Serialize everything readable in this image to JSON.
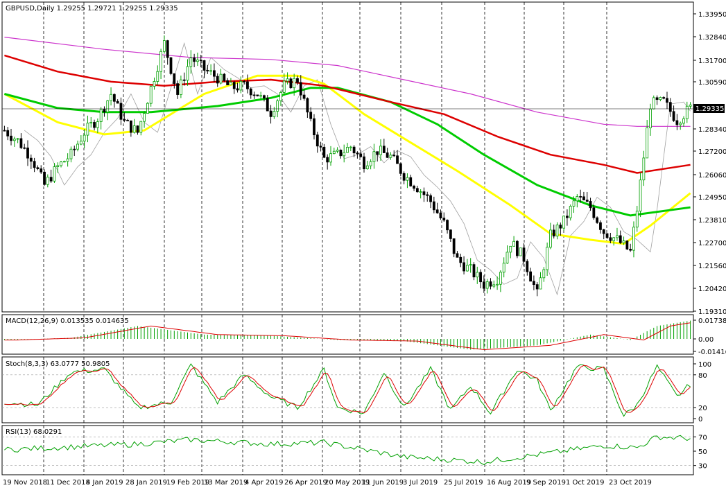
{
  "header": {
    "symbol_line": "GBPUSD,Daily  1.29255 1.29721 1.29255 1.29335",
    "current_price_label": "1.29335"
  },
  "colors": {
    "background": "#ffffff",
    "candle_up": "#00a000",
    "candle_down": "#000000",
    "ma_fast": "#ffff00",
    "ma_mid": "#00cc00",
    "ma_slow": "#dd0000",
    "ma_longest": "#cc33cc",
    "thin_ma": "#a0a0a0",
    "macd_hist": "#00a000",
    "macd_signal": "#dd0000",
    "stoch_main": "#00a000",
    "stoch_signal": "#dd0000",
    "rsi": "#00a000",
    "grid_dash": "#000000"
  },
  "chart_data": [
    {
      "type": "candlestick",
      "title": "GBPUSD,Daily  1.29255 1.29721 1.29255 1.29335",
      "panel": "price",
      "y_ticks": [
        "1.33950",
        "1.32840",
        "1.31700",
        "1.30590",
        "1.29335",
        "1.28340",
        "1.27200",
        "1.26060",
        "1.24950",
        "1.23810",
        "1.22700",
        "1.21560",
        "1.20420",
        "1.19310"
      ],
      "ylim": [
        1.1931,
        1.3395
      ],
      "x_ticks": [
        "19 Nov 2018",
        "11 Dec 2018",
        "4 Jan 2019",
        "28 Jan 2019",
        "19 Feb 2019",
        "13 Mar 2019",
        "4 Apr 2019",
        "26 Apr 2019",
        "20 May 2019",
        "11 Jun 2019",
        "3 Jul 2019",
        "25 Jul 2019",
        "16 Aug 2019",
        "9 Sep 2019",
        "1 Oct 2019",
        "23 Oct 2019"
      ],
      "close_path": [
        [
          0,
          1.282
        ],
        [
          4,
          1.277
        ],
        [
          8,
          1.269
        ],
        [
          12,
          1.255
        ],
        [
          16,
          1.264
        ],
        [
          20,
          1.27
        ],
        [
          24,
          1.281
        ],
        [
          28,
          1.288
        ],
        [
          32,
          1.3
        ],
        [
          36,
          1.286
        ],
        [
          40,
          1.281
        ],
        [
          44,
          1.303
        ],
        [
          48,
          1.325
        ],
        [
          52,
          1.3
        ],
        [
          56,
          1.318
        ],
        [
          60,
          1.312
        ],
        [
          64,
          1.308
        ],
        [
          68,
          1.303
        ],
        [
          72,
          1.304
        ],
        [
          76,
          1.3
        ],
        [
          80,
          1.291
        ],
        [
          84,
          1.304
        ],
        [
          88,
          1.307
        ],
        [
          92,
          1.285
        ],
        [
          96,
          1.268
        ],
        [
          100,
          1.27
        ],
        [
          104,
          1.274
        ],
        [
          108,
          1.266
        ],
        [
          112,
          1.272
        ],
        [
          116,
          1.269
        ],
        [
          120,
          1.26
        ],
        [
          124,
          1.254
        ],
        [
          128,
          1.247
        ],
        [
          132,
          1.236
        ],
        [
          136,
          1.218
        ],
        [
          140,
          1.213
        ],
        [
          144,
          1.206
        ],
        [
          148,
          1.209
        ],
        [
          152,
          1.227
        ],
        [
          156,
          1.219
        ],
        [
          160,
          1.201
        ],
        [
          164,
          1.23
        ],
        [
          168,
          1.237
        ],
        [
          172,
          1.249
        ],
        [
          176,
          1.244
        ],
        [
          180,
          1.232
        ],
        [
          184,
          1.228
        ],
        [
          188,
          1.222
        ],
        [
          190,
          1.243
        ],
        [
          194,
          1.295
        ],
        [
          198,
          1.296
        ],
        [
          202,
          1.287
        ],
        [
          206,
          1.293
        ]
      ],
      "moving_averages": [
        {
          "color": "yellow",
          "points": [
            [
              0,
              1.3
            ],
            [
              16,
              1.286
            ],
            [
              30,
              1.28
            ],
            [
              42,
              1.282
            ],
            [
              60,
              1.3
            ],
            [
              76,
              1.309
            ],
            [
              88,
              1.309
            ],
            [
              96,
              1.305
            ],
            [
              108,
              1.29
            ],
            [
              120,
              1.278
            ],
            [
              136,
              1.262
            ],
            [
              152,
              1.245
            ],
            [
              164,
              1.231
            ],
            [
              176,
              1.228
            ],
            [
              186,
              1.226
            ],
            [
              194,
              1.235
            ],
            [
              206,
              1.251
            ]
          ]
        },
        {
          "color": "green",
          "points": [
            [
              0,
              1.3
            ],
            [
              16,
              1.293
            ],
            [
              30,
              1.291
            ],
            [
              44,
              1.291
            ],
            [
              64,
              1.294
            ],
            [
              80,
              1.298
            ],
            [
              92,
              1.303
            ],
            [
              100,
              1.303
            ],
            [
              116,
              1.296
            ],
            [
              130,
              1.285
            ],
            [
              144,
              1.27
            ],
            [
              160,
              1.255
            ],
            [
              176,
              1.245
            ],
            [
              188,
              1.24
            ],
            [
              206,
              1.244
            ]
          ]
        },
        {
          "color": "red",
          "points": [
            [
              0,
              1.319
            ],
            [
              16,
              1.311
            ],
            [
              32,
              1.306
            ],
            [
              48,
              1.304
            ],
            [
              64,
              1.306
            ],
            [
              80,
              1.307
            ],
            [
              96,
              1.304
            ],
            [
              116,
              1.296
            ],
            [
              132,
              1.29
            ],
            [
              148,
              1.279
            ],
            [
              164,
              1.27
            ],
            [
              180,
              1.265
            ],
            [
              190,
              1.261
            ],
            [
              206,
              1.265
            ]
          ]
        },
        {
          "color": "magenta",
          "points": [
            [
              0,
              1.328
            ],
            [
              30,
              1.322
            ],
            [
              56,
              1.318
            ],
            [
              80,
              1.317
            ],
            [
              100,
              1.314
            ],
            [
              120,
              1.307
            ],
            [
              140,
              1.3
            ],
            [
              160,
              1.291
            ],
            [
              180,
              1.285
            ],
            [
              190,
              1.284
            ],
            [
              206,
              1.284
            ]
          ]
        }
      ]
    },
    {
      "type": "histogram",
      "panel": "macd",
      "title": "MACD(12,26,9) 0.013535 0.014635",
      "y_ticks": [
        "0.017387",
        "0.00",
        "-0.014165"
      ],
      "ylim": [
        -0.014165,
        0.017387
      ]
    },
    {
      "type": "line",
      "panel": "stochastic",
      "title": "Stoch(8,3,3) 63.0777 50.9805",
      "y_ticks": [
        "100",
        "80",
        "20",
        "0"
      ],
      "ylim": [
        0,
        100
      ]
    },
    {
      "type": "line",
      "panel": "rsi",
      "title": "RSI(13) 68.0291",
      "y_ticks": [
        "70",
        "50",
        "30"
      ],
      "ylim": [
        20,
        80
      ]
    }
  ]
}
